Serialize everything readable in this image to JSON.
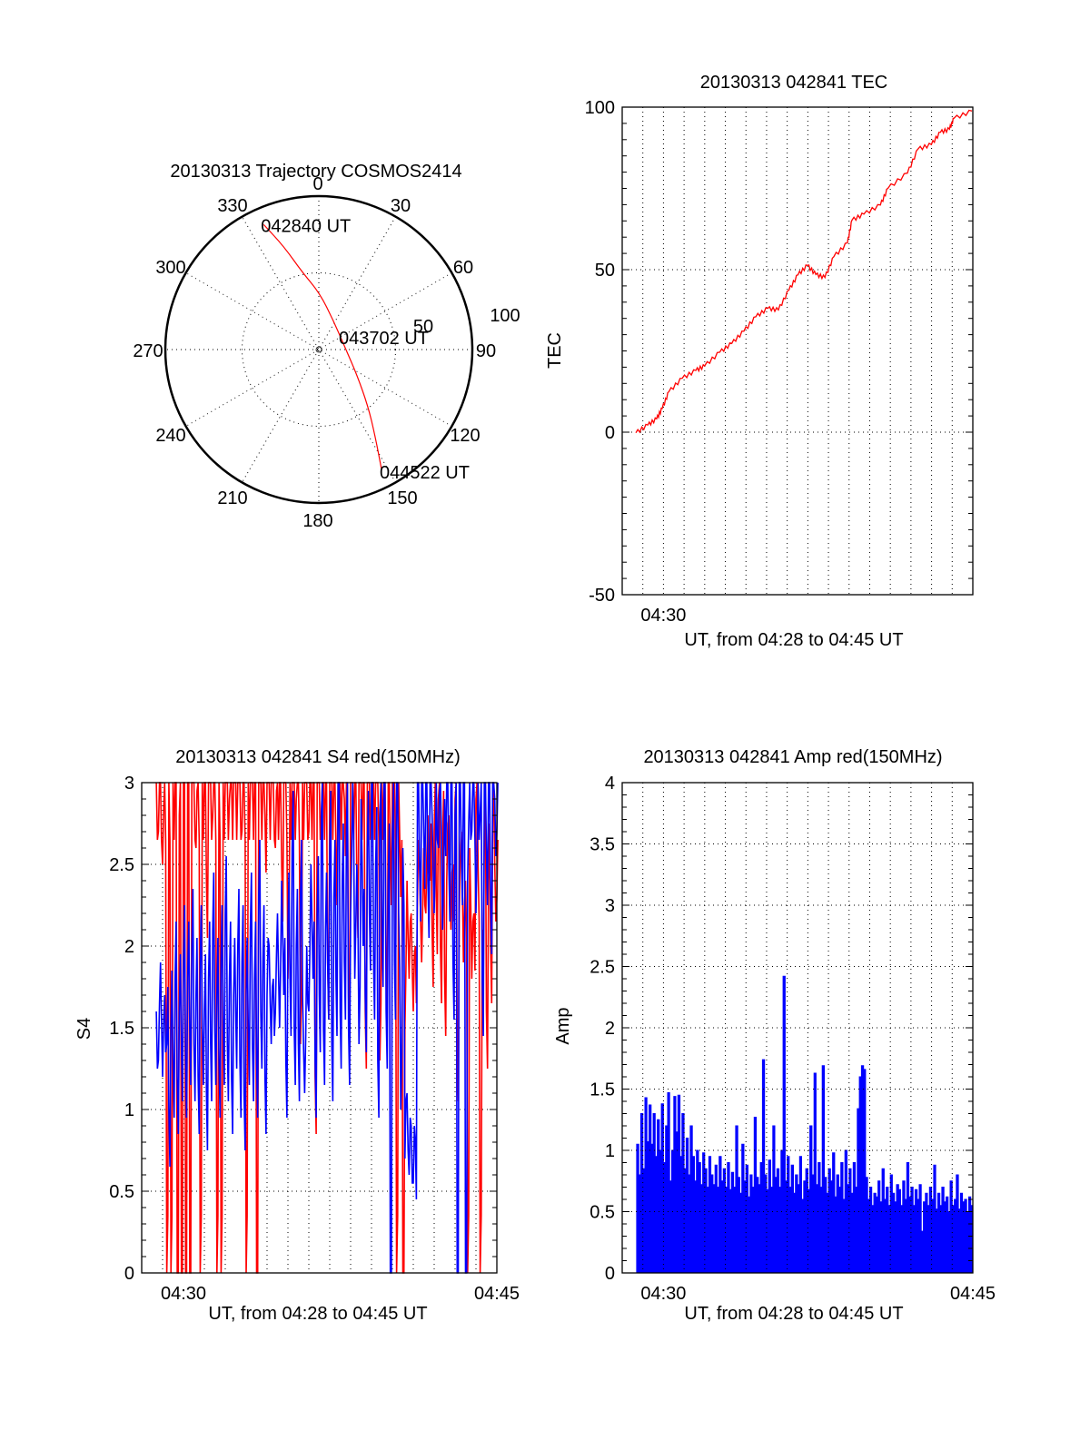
{
  "page": {
    "colors": {
      "background": "#ffffff",
      "axes": "#000000",
      "red_series": "#ff0000",
      "blue_series": "#0000ff"
    }
  },
  "chart_data": [
    {
      "id": "trajectory",
      "type": "polar",
      "title": "20130313 Trajectory COSMOS2414",
      "angle_labels": [
        "0",
        "30",
        "60",
        "90",
        "120",
        "150",
        "180",
        "210",
        "240",
        "270",
        "300",
        "330"
      ],
      "radius_labels": [
        "50",
        "100"
      ],
      "rlim": [
        0,
        100
      ],
      "grid": true,
      "series": [
        {
          "name": "trajectory",
          "color": "#ff0000",
          "azimuth_deg": [
            336.2,
            341.4,
            348.0,
            0.9,
            26.6,
            86.0,
            123.7,
            138.9,
            146.9,
            152.4
          ],
          "radius": [
            89.0,
            70.6,
            51.4,
            36.7,
            21.2,
            17.2,
            29.9,
            48.6,
            67.1,
            88.1
          ]
        }
      ],
      "annotations": [
        {
          "text": "042840 UT",
          "azimuth_deg": 336.2,
          "radius": 89.0
        },
        {
          "text": "043702 UT",
          "azimuth_deg": 86.0,
          "radius": 17.2
        },
        {
          "text": "044522 UT",
          "azimuth_deg": 152.4,
          "radius": 88.1
        }
      ]
    },
    {
      "id": "tec",
      "type": "line",
      "title": "20130313 042841 TEC",
      "xlabel": "UT, from 04:28 to 04:45 UT",
      "ylabel": "TEC",
      "x_units": "minutes after 04:28 UT",
      "xlim": [
        0,
        17
      ],
      "ylim": [
        -50,
        100
      ],
      "yticks": [
        "100",
        "50",
        "0",
        "-50"
      ],
      "ytick_values": [
        100,
        50,
        0,
        -50
      ],
      "xticks": [
        "04:30"
      ],
      "xtick_values": [
        2
      ],
      "grid": true,
      "series": [
        {
          "name": "TEC",
          "color": "#ff0000",
          "x": [
            0.66,
            1.24,
            1.67,
            1.94,
            2.26,
            2.91,
            3.57,
            4.0,
            4.73,
            5.31,
            5.9,
            6.48,
            7.06,
            7.57,
            8.08,
            8.52,
            8.98,
            9.39,
            9.83,
            10.26,
            10.92,
            11.14,
            11.72,
            12.52,
            12.88,
            13.83,
            14.34,
            14.99,
            15.43,
            15.87,
            16.08,
            16.96
          ],
          "y": [
            -0.2,
            2.2,
            4.1,
            7.3,
            12.4,
            16.6,
            19.0,
            20.4,
            24.6,
            27.3,
            31.1,
            35.5,
            38.1,
            37.6,
            43.7,
            48.4,
            51.3,
            48.5,
            47.6,
            54.0,
            58.2,
            65.2,
            67.1,
            69.9,
            75.0,
            79.7,
            87.1,
            88.5,
            92.3,
            93.2,
            96.5,
            98.8
          ]
        }
      ]
    },
    {
      "id": "s4",
      "type": "line",
      "title": "20130313 042841 S4 red(150MHz)",
      "xlabel": "UT, from 04:28 to 04:45 UT",
      "ylabel": "S4",
      "x_units": "minutes after 04:28 UT",
      "xlim": [
        0,
        17
      ],
      "ylim": [
        0,
        3
      ],
      "yticks": [
        "0",
        "0.5",
        "1",
        "1.5",
        "2",
        "2.5",
        "3"
      ],
      "ytick_values": [
        0,
        0.5,
        1,
        1.5,
        2,
        2.5,
        3
      ],
      "xticks": [
        "04:30",
        "04:45"
      ],
      "xtick_values": [
        2,
        17
      ],
      "grid": true,
      "x_start": 0.7,
      "x_step": 0.1,
      "series": [
        {
          "name": "red",
          "color": "#ff0000",
          "values": [
            3,
            2.7,
            3,
            2.5,
            3,
            0,
            3,
            0,
            3,
            3,
            0,
            2.8,
            0,
            3,
            0,
            3,
            0,
            3,
            3,
            2.6,
            3,
            0,
            3,
            3,
            2.4,
            3,
            3,
            2.8,
            3,
            0,
            3,
            0,
            3,
            3,
            3,
            2.9,
            3,
            3,
            3,
            3,
            3,
            2.7,
            3,
            0,
            3,
            3,
            3,
            3,
            0,
            3,
            3,
            3,
            2.8,
            3,
            3,
            3,
            3,
            2.6,
            3,
            3,
            2.5,
            3,
            3,
            1.8,
            3,
            3,
            3,
            2.9,
            3,
            1.4,
            3,
            3,
            3,
            2.7,
            3,
            3,
            1.2,
            3,
            3,
            2.8,
            3,
            3,
            1.9,
            3,
            3,
            3,
            2.6,
            3,
            3,
            3,
            2.9,
            3,
            1.7,
            3,
            3,
            3,
            2.4,
            3,
            3,
            3,
            1.6,
            3,
            3,
            2.8,
            3,
            3,
            3,
            1.3,
            3,
            3,
            1.9,
            3,
            2.6,
            3,
            3,
            0,
            3,
            2.3,
            0,
            1.5,
            2.4,
            1.8,
            2.2,
            1.6,
            2.0,
            2.3,
            2.5,
            1.9,
            2.6,
            2.2,
            2.8,
            2.4,
            2.1,
            2.7,
            2.3,
            2.9,
            2.0,
            2.6,
            1.8,
            2.4,
            2.8,
            2.1,
            2.5,
            2.9,
            1.4,
            2.2,
            2.7,
            1.9,
            2.4,
            0,
            2.6,
            1.8,
            2.2,
            2.9,
            2.5,
            0,
            2.1,
            2.7,
            1.6,
            2.4,
            2.0,
            2.8,
            2.5,
            2.3
          ]
        },
        {
          "name": "blue",
          "color": "#0000ff",
          "values": [
            1.6,
            1.3,
            1.9,
            1.2,
            1.7,
            1.4,
            1.0,
            1.5,
            1.3,
            1.8,
            1.2,
            1.6,
            1.4,
            1.9,
            1.3,
            1.8,
            1.5,
            2.0,
            1.4,
            1.7,
            1.2,
            1.9,
            1.5,
            1.6,
            1.1,
            1.8,
            1.4,
            2.1,
            1.5,
            1.7,
            1.3,
            1.9,
            1.5,
            2.2,
            1.4,
            1.8,
            1.2,
            1.7,
            1.6,
            2.0,
            1.3,
            1.9,
            1.1,
            1.7,
            1.5,
            2.1,
            1.4,
            1.8,
            1.3,
            2.3,
            1.6,
            1.9,
            1.2,
            1.7,
            2.0,
            1.4,
            1.8,
            1.6,
            2.2,
            1.5,
            2.4,
            1.7,
            1.3,
            2.1,
            1.8,
            2.6,
            1.5,
            2.0,
            1.4,
            2.3,
            1.7,
            1.1,
            2.0,
            1.6,
            2.5,
            1.8,
            1.3,
            2.2,
            1.7,
            2.8,
            1.5,
            2.1,
            1.9,
            2.6,
            1.4,
            2.3,
            1.8,
            3.0,
            1.6,
            2.4,
            1.9,
            2.7,
            1.5,
            2.2,
            3.0,
            1.8,
            2.5,
            1.4,
            2.9,
            2.0,
            1.7,
            2.6,
            2.2,
            3.0,
            1.9,
            2.5,
            1.3,
            2.8,
            2.1,
            3.0,
            1.6,
            2.4,
            0.0,
            2.7,
            1.9,
            3.0,
            2.2,
            1.0,
            2.6,
            0.7,
            1.1,
            0.6,
            0.9,
            0.55,
            0.8,
            3.0,
            2.5,
            3.0,
            2.7,
            3.0,
            2.4,
            3.0,
            2.8,
            2.2,
            3.0,
            2.6,
            3.0,
            2.1,
            2.9,
            3.0,
            2.5,
            3.0,
            1.9,
            2.8,
            0.0,
            3.0,
            2.6,
            3.0,
            0.0,
            2.4,
            3.0,
            2.7,
            3.0,
            2.2,
            3.0,
            2.8,
            1.8,
            3.0,
            2.6,
            3.0,
            2.3,
            3.0,
            2.9,
            2.7
          ]
        }
      ]
    },
    {
      "id": "amp",
      "type": "area",
      "title": "20130313 042841 Amp red(150MHz)",
      "xlabel": "UT, from 04:28 to 04:45 UT",
      "ylabel": "Amp",
      "x_units": "minutes after 04:28 UT",
      "xlim": [
        0,
        17
      ],
      "ylim": [
        0,
        4
      ],
      "yticks": [
        "0",
        "0.5",
        "1",
        "1.5",
        "2",
        "2.5",
        "3",
        "3.5",
        "4"
      ],
      "ytick_values": [
        0,
        0.5,
        1,
        1.5,
        2,
        2.5,
        3,
        3.5,
        4
      ],
      "xticks": [
        "04:30",
        "04:45"
      ],
      "xtick_values": [
        2,
        17
      ],
      "grid": true,
      "x_start": 0.7,
      "x_step": 0.1,
      "series": [
        {
          "name": "Amp",
          "color": "#0000ff",
          "values": [
            1.05,
            0.8,
            1.3,
            0.85,
            1.43,
            1.07,
            1.37,
            1.05,
            1.3,
            0.95,
            1.25,
            1.0,
            1.38,
            0.9,
            1.2,
            1.47,
            0.75,
            1.0,
            1.44,
            1.15,
            1.45,
            0.95,
            1.3,
            0.85,
            1.1,
            0.8,
            1.2,
            0.95,
            0.75,
            1.0,
            0.9,
            0.72,
            0.98,
            0.85,
            0.7,
            0.95,
            0.8,
            0.72,
            0.88,
            0.7,
            0.95,
            0.75,
            0.85,
            0.7,
            0.9,
            0.68,
            0.82,
            0.7,
            1.2,
            0.78,
            0.65,
            1.05,
            0.75,
            0.88,
            0.62,
            0.8,
            0.7,
            1.27,
            0.78,
            0.72,
            0.9,
            1.74,
            0.8,
            0.68,
            0.92,
            0.7,
            1.2,
            0.78,
            0.85,
            0.7,
            1.0,
            2.42,
            0.75,
            0.95,
            0.7,
            0.88,
            0.65,
            0.8,
            0.72,
            0.95,
            0.6,
            0.75,
            0.85,
            0.68,
            1.2,
            0.8,
            1.63,
            0.72,
            0.9,
            0.7,
            1.69,
            0.78,
            0.65,
            0.85,
            0.75,
            0.98,
            0.62,
            0.8,
            0.7,
            0.9,
            0.6,
            1.0,
            0.72,
            0.85,
            0.65,
            0.9,
            0.7,
            1.34,
            1.6,
            1.69,
            1.66,
            0.78,
            0.6,
            0.7,
            0.55,
            0.65,
            0.62,
            0.75,
            0.58,
            0.85,
            0.6,
            0.7,
            0.55,
            0.8,
            0.65,
            0.58,
            0.72,
            0.68,
            0.55,
            0.75,
            0.6,
            0.9,
            0.62,
            0.7,
            0.55,
            0.68,
            0.6,
            0.72,
            0.34,
            0.58,
            0.65,
            0.55,
            0.7,
            0.6,
            0.88,
            0.52,
            0.65,
            0.55,
            0.7,
            0.58,
            0.62,
            0.5,
            0.75,
            0.55,
            0.6,
            0.8,
            0.52,
            0.65,
            0.58,
            0.6,
            0.5,
            0.62,
            0.55,
            0.65
          ]
        }
      ]
    }
  ]
}
